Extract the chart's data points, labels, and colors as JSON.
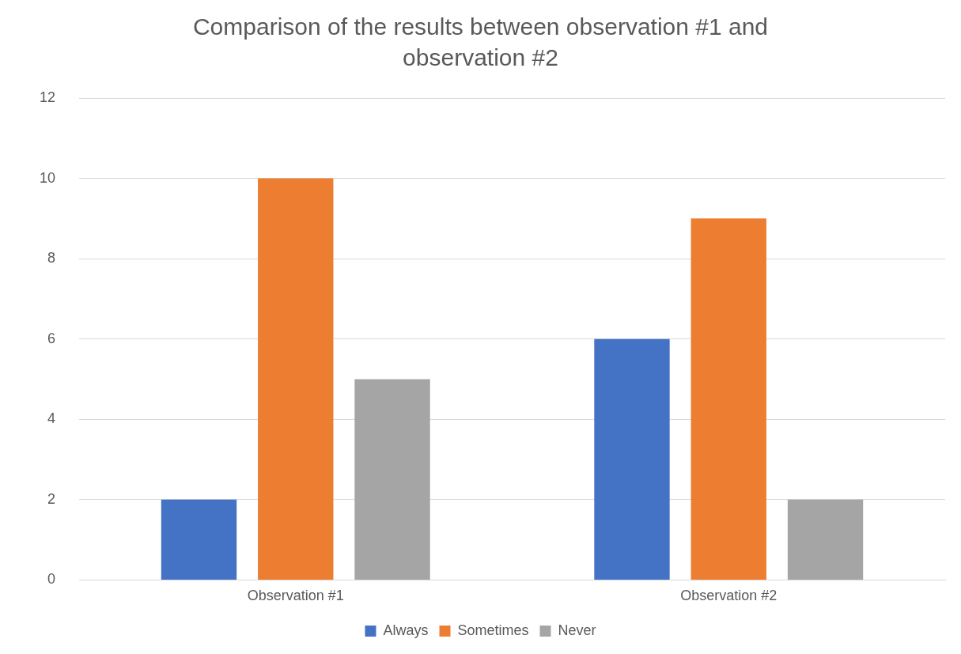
{
  "chart_data": {
    "type": "bar",
    "title": "Comparison of the results between observation #1 and observation #2",
    "categories": [
      "Observation #1",
      "Observation #2"
    ],
    "series": [
      {
        "name": "Always",
        "color": "#4472c4",
        "values": [
          2,
          6
        ]
      },
      {
        "name": "Sometimes",
        "color": "#ed7d31",
        "values": [
          10,
          9
        ]
      },
      {
        "name": "Never",
        "color": "#a5a5a5",
        "values": [
          5,
          2
        ]
      }
    ],
    "ylim": [
      0,
      12
    ],
    "yticks": [
      0,
      2,
      4,
      6,
      8,
      10,
      12
    ],
    "grid": "y",
    "legend": "bottom"
  }
}
